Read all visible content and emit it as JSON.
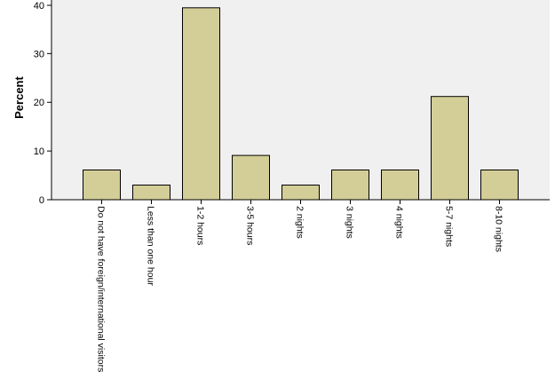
{
  "chart_data": {
    "type": "bar",
    "title": "",
    "xlabel": "",
    "ylabel": "Percent",
    "categories": [
      "Do not have foreign/international visitors",
      "Less than one hour",
      "1-2 hours",
      "3-5 hours",
      "2 nights",
      "3 nights",
      "4 nights",
      "5-7 nights",
      "8-10 nights"
    ],
    "values": [
      6.1,
      3.0,
      39.4,
      9.1,
      3.0,
      6.1,
      6.1,
      21.2,
      6.1
    ],
    "ylim": [
      0,
      41
    ],
    "yticks": [
      "0",
      "10",
      "20",
      "30",
      "40"
    ],
    "grid": false,
    "colors": {
      "bar_fill": "#d3ce97",
      "bar_stroke": "#000000",
      "plot_background": "#f0f0f0",
      "axis": "#000000"
    }
  }
}
